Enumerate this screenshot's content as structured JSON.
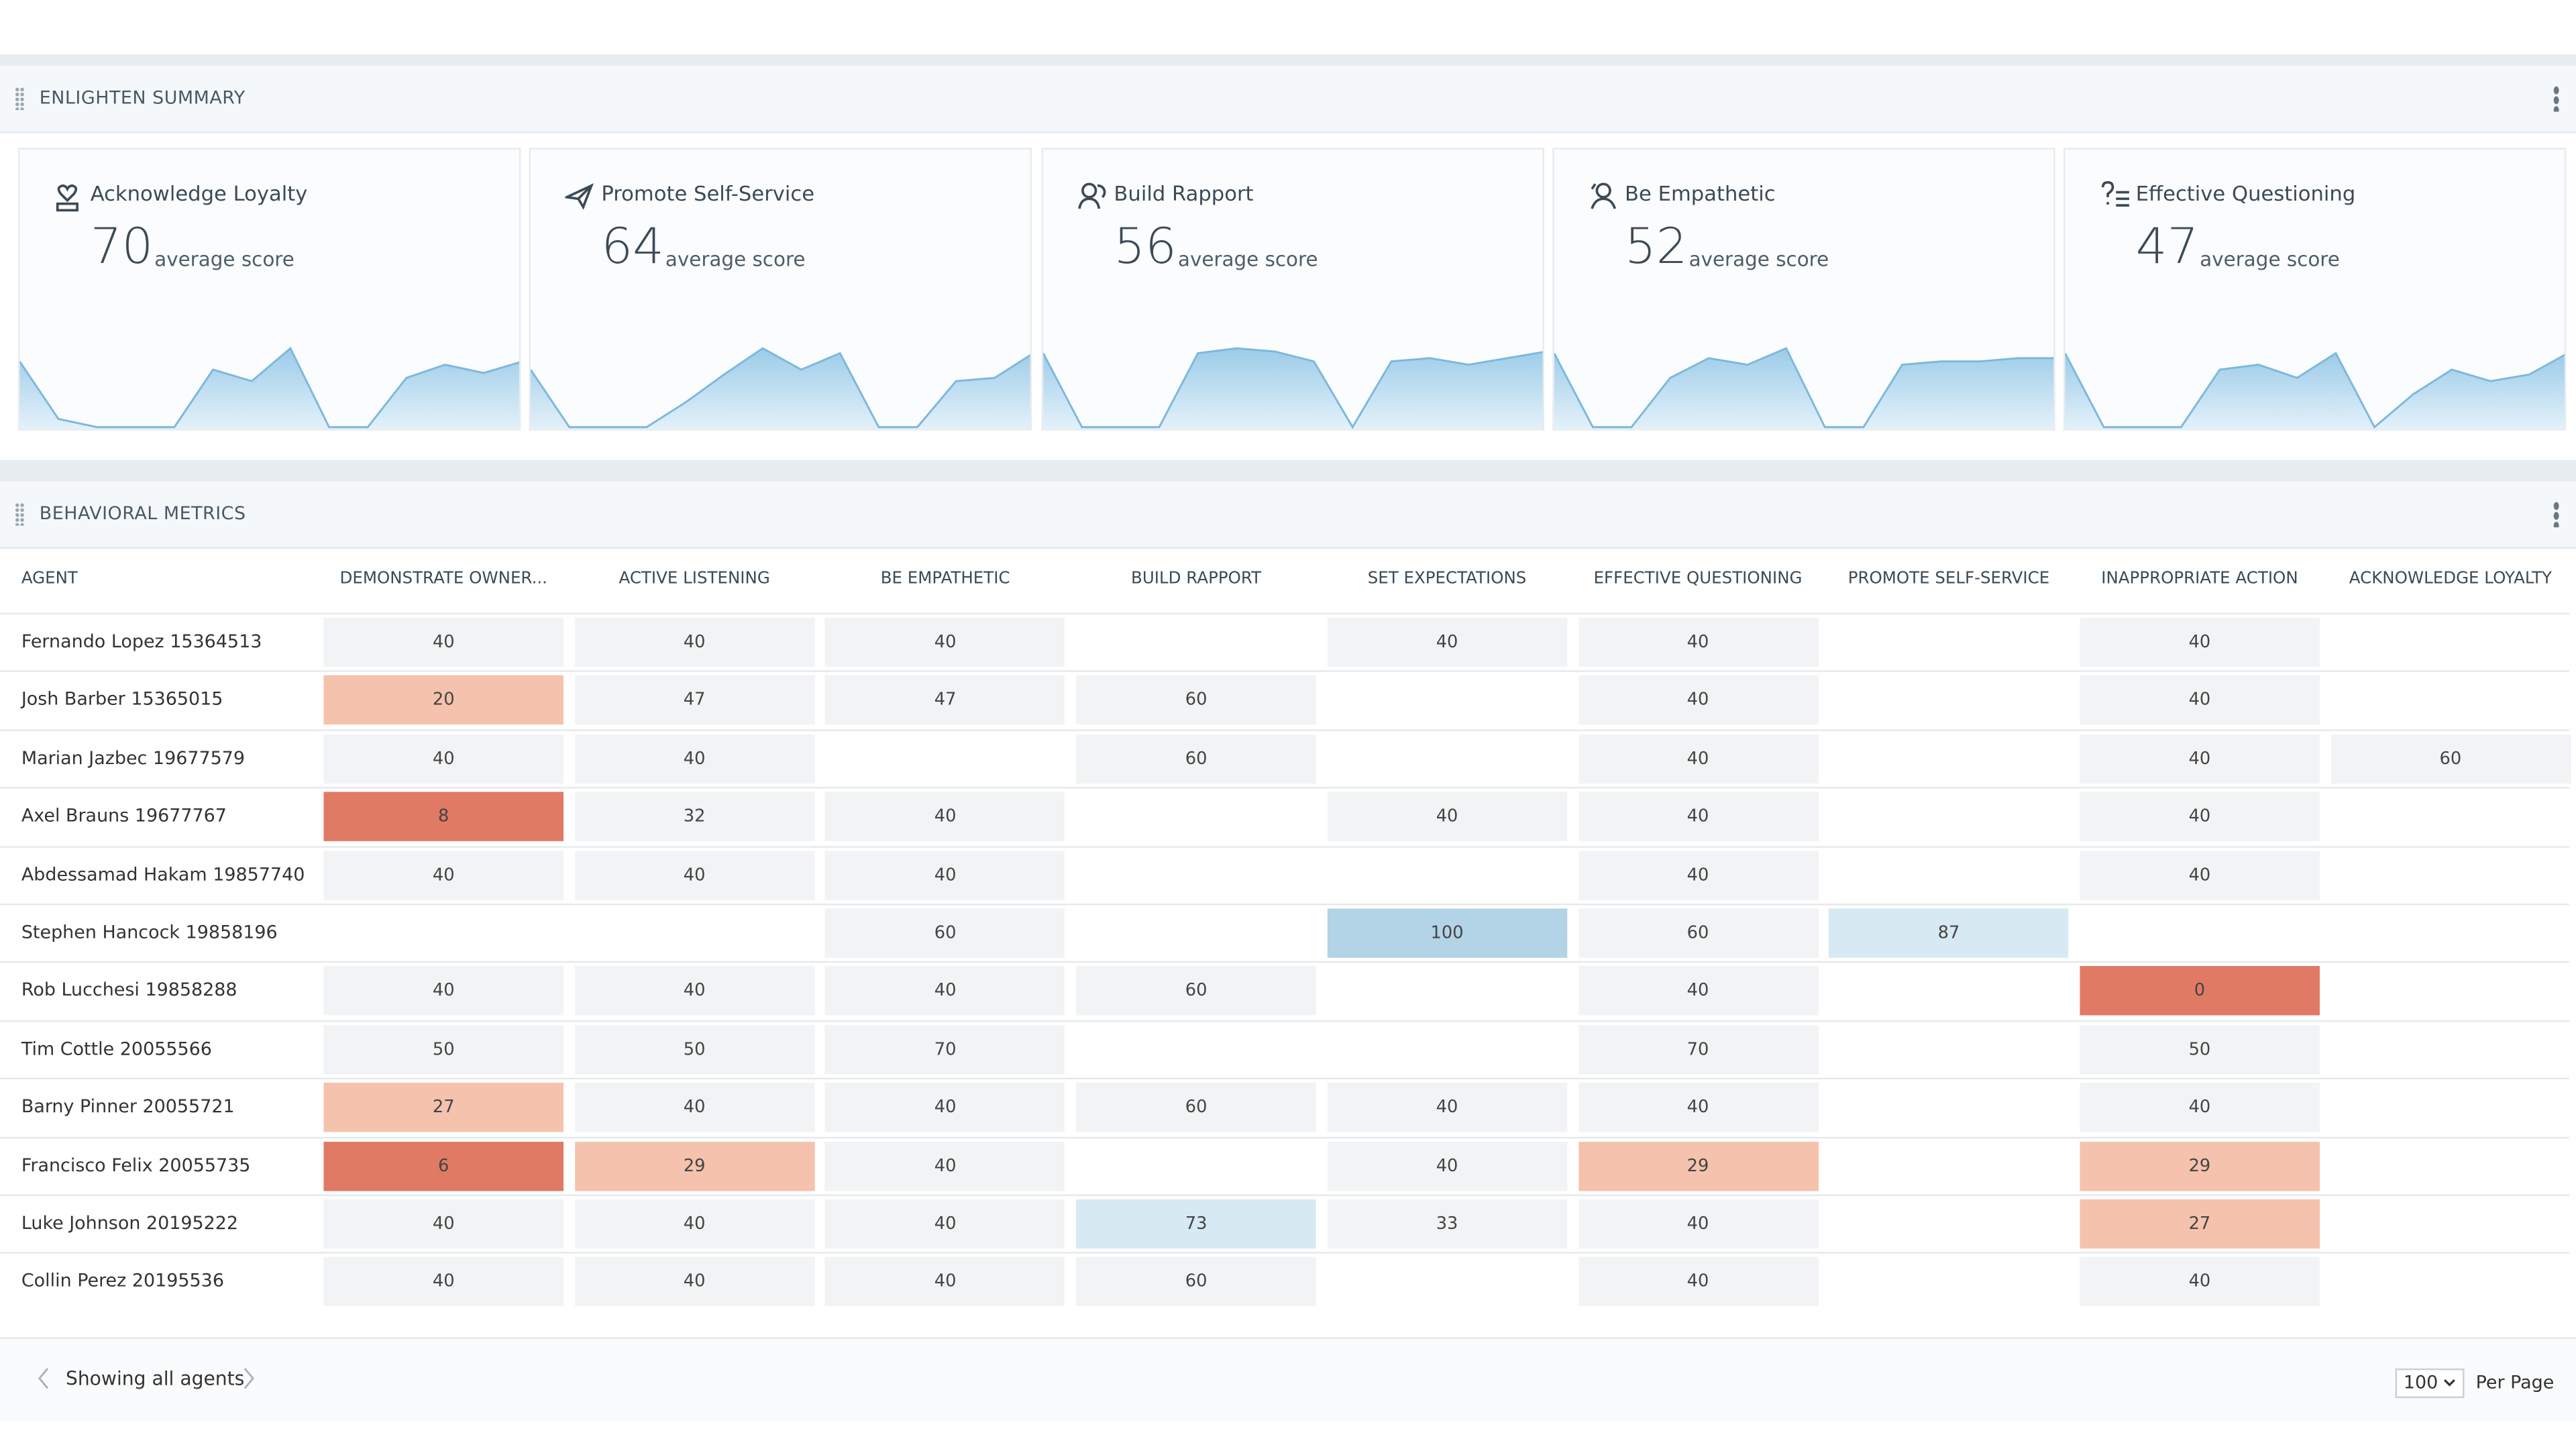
{
  "summary": {
    "title": "ENLIGHTEN SUMMARY",
    "cards": [
      {
        "title": "Acknowledge Loyalty",
        "score": 70,
        "caption": "average score",
        "trend": [
          40,
          5,
          0,
          0,
          0,
          35,
          28,
          48,
          0,
          0,
          30,
          38,
          33,
          40
        ]
      },
      {
        "title": "Promote Self-Service",
        "score": 64,
        "caption": "average score",
        "trend": [
          35,
          0,
          0,
          0,
          15,
          32,
          48,
          35,
          45,
          0,
          0,
          28,
          30,
          45
        ]
      },
      {
        "title": "Build Rapport",
        "score": 56,
        "caption": "average score",
        "trend": [
          45,
          0,
          0,
          0,
          45,
          48,
          46,
          40,
          0,
          40,
          42,
          38,
          42,
          46
        ]
      },
      {
        "title": "Be Empathetic",
        "score": 52,
        "caption": "average score",
        "trend": [
          45,
          0,
          0,
          30,
          42,
          38,
          48,
          0,
          0,
          38,
          40,
          40,
          42,
          42
        ]
      },
      {
        "title": "Effective Questioning",
        "score": 47,
        "caption": "average score",
        "trend": [
          45,
          0,
          0,
          0,
          35,
          38,
          30,
          45,
          0,
          20,
          35,
          28,
          32,
          45
        ]
      }
    ]
  },
  "metrics": {
    "title": "BEHAVIORAL METRICS",
    "columns": [
      "AGENT",
      "DEMONSTRATE OWNER...",
      "ACTIVE LISTENING",
      "BE EMPATHETIC",
      "BUILD RAPPORT",
      "SET EXPECTATIONS",
      "EFFECTIVE QUESTIONING",
      "PROMOTE SELF-SERVICE",
      "INAPPROPRIATE ACTION",
      "ACKNOWLEDGE LOYALTY"
    ],
    "rows": [
      {
        "agent": "Fernando Lopez 15364513",
        "scores": [
          40,
          40,
          40,
          null,
          40,
          40,
          null,
          40,
          null
        ],
        "colors": [
          null,
          null,
          null,
          null,
          null,
          null,
          null,
          null,
          null
        ]
      },
      {
        "agent": "Josh Barber 15365015",
        "scores": [
          20,
          47,
          47,
          60,
          null,
          40,
          null,
          40,
          null
        ],
        "colors": [
          "#f5c2ad",
          null,
          null,
          null,
          null,
          null,
          null,
          null,
          null
        ]
      },
      {
        "agent": "Marian Jazbec 19677579",
        "scores": [
          40,
          40,
          null,
          60,
          null,
          40,
          null,
          40,
          60
        ],
        "colors": [
          null,
          null,
          null,
          null,
          null,
          null,
          null,
          null,
          null
        ]
      },
      {
        "agent": "Axel Brauns 19677767",
        "scores": [
          8,
          32,
          40,
          null,
          40,
          40,
          null,
          40,
          null
        ],
        "colors": [
          "#e07a64",
          null,
          null,
          null,
          null,
          null,
          null,
          null,
          null
        ]
      },
      {
        "agent": "Abdessamad Hakam 19857740",
        "scores": [
          40,
          40,
          40,
          null,
          null,
          40,
          null,
          40,
          null
        ],
        "colors": [
          null,
          null,
          null,
          null,
          null,
          null,
          null,
          null,
          null
        ]
      },
      {
        "agent": "Stephen Hancock 19858196",
        "scores": [
          null,
          null,
          60,
          null,
          100,
          60,
          87,
          null,
          null
        ],
        "colors": [
          null,
          null,
          null,
          null,
          "#b3d3e6",
          null,
          "#d7eaf3",
          null,
          null
        ]
      },
      {
        "agent": "Rob Lucchesi 19858288",
        "scores": [
          40,
          40,
          40,
          60,
          null,
          40,
          null,
          0,
          null
        ],
        "colors": [
          null,
          null,
          null,
          null,
          null,
          null,
          null,
          "#e07a64",
          null
        ]
      },
      {
        "agent": "Tim Cottle 20055566",
        "scores": [
          50,
          50,
          70,
          null,
          null,
          70,
          null,
          50,
          null
        ],
        "colors": [
          null,
          null,
          null,
          null,
          null,
          null,
          null,
          null,
          null
        ]
      },
      {
        "agent": "Barny Pinner 20055721",
        "scores": [
          27,
          40,
          40,
          60,
          40,
          40,
          null,
          40,
          null
        ],
        "colors": [
          "#f5c2ad",
          null,
          null,
          null,
          null,
          null,
          null,
          null,
          null
        ]
      },
      {
        "agent": "Francisco Felix 20055735",
        "scores": [
          6,
          29,
          40,
          null,
          40,
          29,
          null,
          29,
          null
        ],
        "colors": [
          "#e07a64",
          "#f5c2ad",
          null,
          null,
          null,
          "#f5c2ad",
          null,
          "#f5c2ad",
          null
        ]
      },
      {
        "agent": "Luke Johnson 20195222",
        "scores": [
          40,
          40,
          40,
          73,
          33,
          40,
          null,
          27,
          null
        ],
        "colors": [
          null,
          null,
          null,
          "#d7eaf3",
          null,
          null,
          null,
          "#f5c2ad",
          null
        ]
      },
      {
        "agent": "Collin Perez 20195536",
        "scores": [
          40,
          40,
          40,
          60,
          null,
          40,
          null,
          40,
          null
        ],
        "colors": [
          null,
          null,
          null,
          null,
          null,
          null,
          null,
          null,
          null
        ]
      }
    ]
  },
  "footer": {
    "status": "Showing all agents",
    "page_size": "100",
    "page_size_label": "Per Page"
  }
}
